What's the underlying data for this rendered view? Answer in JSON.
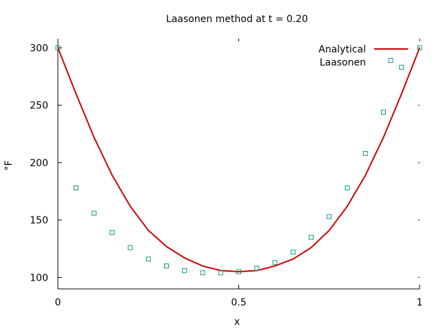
{
  "chart_data": {
    "type": "line",
    "title": "Laasonen method at t = 0.20",
    "xlabel": "x",
    "ylabel": "°F",
    "xlim": [
      0,
      1
    ],
    "ylim": [
      90,
      308
    ],
    "xticks": [
      0,
      0.5,
      1
    ],
    "xtick_labels": [
      "0",
      "0.5",
      "1"
    ],
    "yticks": [
      100,
      150,
      200,
      250,
      300
    ],
    "ytick_labels": [
      "100",
      "150",
      "200",
      "250",
      "300"
    ],
    "grid": false,
    "legend_position": "top-right",
    "series": [
      {
        "name": "Analytical",
        "style": "line",
        "color": "#cc0000",
        "x": [
          0,
          0.05,
          0.1,
          0.15,
          0.2,
          0.25,
          0.3,
          0.35,
          0.4,
          0.45,
          0.5,
          0.55,
          0.6,
          0.65,
          0.7,
          0.75,
          0.8,
          0.85,
          0.9,
          0.95,
          1
        ],
        "y": [
          300,
          260,
          222,
          189,
          162,
          141,
          127,
          117,
          110,
          106,
          105,
          106,
          110,
          116,
          126,
          141,
          162,
          189,
          222,
          260,
          300
        ]
      },
      {
        "name": "Laasonen",
        "style": "markers",
        "color": "#11977f",
        "x": [
          0,
          0.05,
          0.1,
          0.15,
          0.2,
          0.25,
          0.3,
          0.35,
          0.4,
          0.45,
          0.5,
          0.55,
          0.6,
          0.65,
          0.7,
          0.75,
          0.8,
          0.85,
          0.9,
          0.92,
          0.95,
          1
        ],
        "y": [
          300,
          178,
          156,
          139,
          126,
          116,
          110,
          106,
          104,
          104,
          105,
          108,
          113,
          122,
          135,
          153,
          178,
          208,
          244,
          289,
          283,
          300
        ]
      }
    ]
  }
}
